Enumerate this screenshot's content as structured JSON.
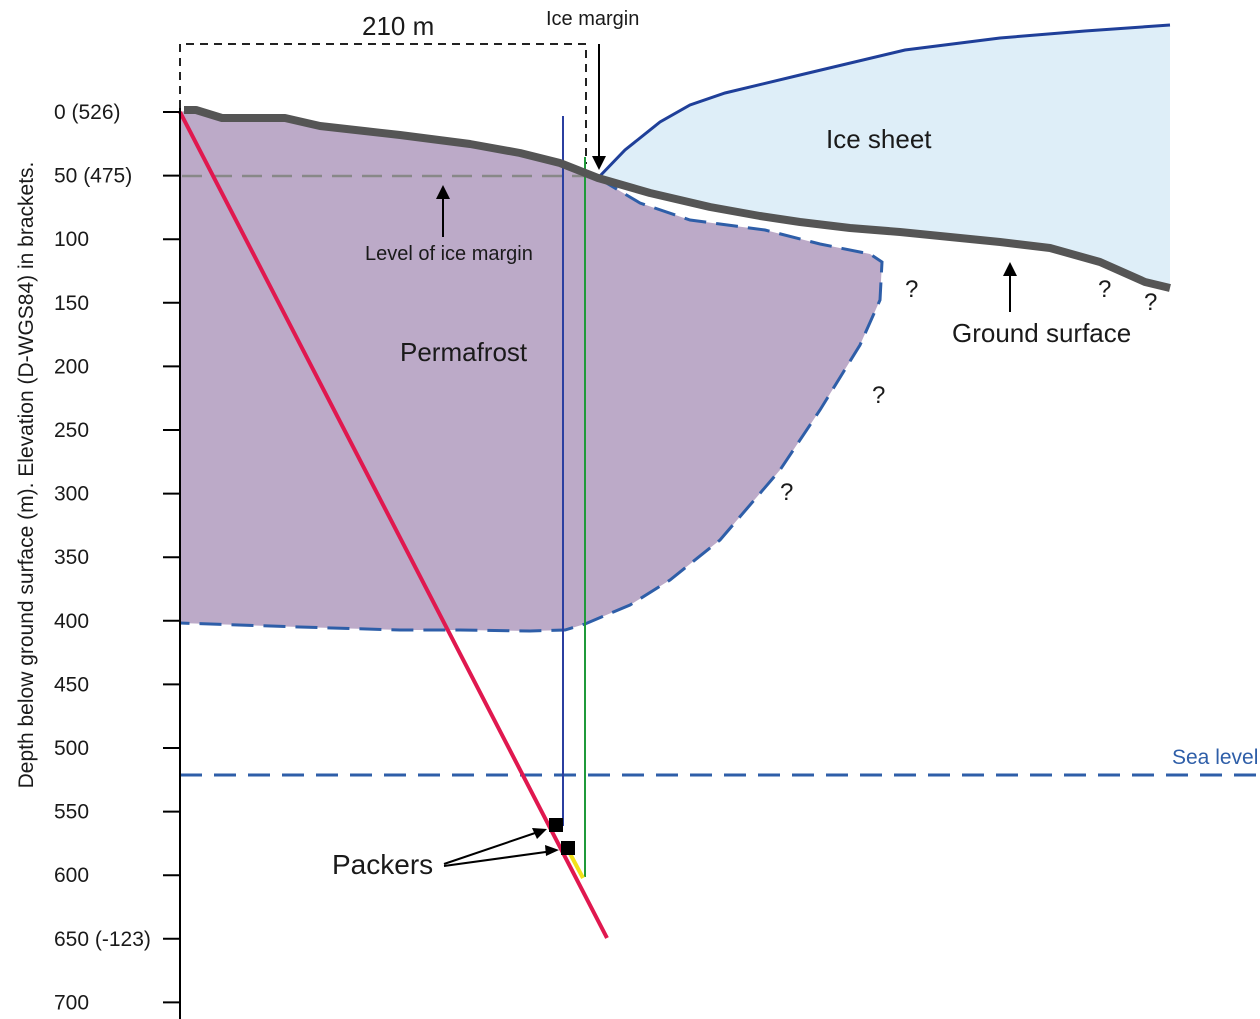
{
  "axis": {
    "title": "Depth below ground surface (m). Elevation (D-WGS84) in brackets.",
    "ticks": [
      "0 (526)",
      "50 (475)",
      "100",
      "150",
      "200",
      "250",
      "300",
      "350",
      "400",
      "450",
      "500",
      "550",
      "600",
      "650 (-123)",
      "700"
    ]
  },
  "labels": {
    "distance": "210 m",
    "ice_margin": "Ice margin",
    "ice_sheet": "Ice sheet",
    "level_of_ice_margin": "Level of ice margin",
    "permafrost": "Permafrost",
    "ground_surface": "Ground surface",
    "sea_level": "Sea level",
    "packers": "Packers",
    "question": "?"
  },
  "colors": {
    "permafrost_fill": "#bcaac8",
    "ice_fill": "#deeef8",
    "ice_outline": "#1f3f99",
    "permafrost_boundary": "#2e5ea8",
    "ground_surface": "#555555",
    "borehole": "#e0184f",
    "borehole_section": "#f2e21a",
    "vertical_blue": "#2b3fa0",
    "vertical_green": "#1f9a3a",
    "sea_level": "#2e5ea8",
    "reference_dashed": "#888888"
  }
}
